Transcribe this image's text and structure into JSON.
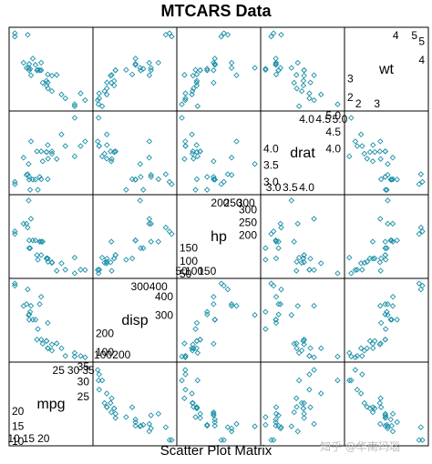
{
  "chart_data": {
    "type": "scatter",
    "title": "MTCARS Data",
    "xlabel": "Scatter Plot Matrix",
    "variables": [
      "mpg",
      "disp",
      "hp",
      "drat",
      "wt"
    ],
    "diagonal": [
      {
        "name": "mpg",
        "range": [
          10,
          35
        ],
        "ticks": [
          10,
          15,
          20,
          25,
          30,
          35
        ]
      },
      {
        "name": "disp",
        "range": [
          70,
          475
        ],
        "ticks": [
          100,
          200,
          300,
          400
        ]
      },
      {
        "name": "hp",
        "range": [
          50,
          340
        ],
        "ticks": [
          50,
          100,
          150,
          200,
          250,
          300
        ]
      },
      {
        "name": "drat",
        "range": [
          2.75,
          5.0
        ],
        "ticks": [
          3.0,
          3.5,
          4.0,
          4.5,
          5.0
        ]
      },
      {
        "name": "wt",
        "range": [
          1.5,
          5.5
        ],
        "ticks": [
          2,
          3,
          4,
          5
        ]
      }
    ],
    "tick_labels": {
      "mpg": {
        "lower": [
          "10",
          "15",
          "20"
        ],
        "upper": [
          "25",
          "30",
          "35"
        ]
      },
      "disp": {
        "lower": [
          "100",
          "200"
        ],
        "upper": [
          "300",
          "400"
        ]
      },
      "hp": {
        "lower": [
          "50",
          "100",
          "150"
        ],
        "upper": [
          "200",
          "250",
          "300"
        ]
      },
      "drat": {
        "lower": [
          "3.0",
          "3.5",
          "4.0"
        ],
        "upper": [
          "4.0",
          "4.5",
          "5.0"
        ]
      },
      "wt": {
        "lower": [
          "2",
          "3"
        ],
        "upper": [
          "4",
          "5"
        ]
      }
    },
    "points": [
      {
        "mpg": 21.0,
        "disp": 160.0,
        "hp": 110,
        "drat": 3.9,
        "wt": 2.62
      },
      {
        "mpg": 21.0,
        "disp": 160.0,
        "hp": 110,
        "drat": 3.9,
        "wt": 2.875
      },
      {
        "mpg": 22.8,
        "disp": 108.0,
        "hp": 93,
        "drat": 3.85,
        "wt": 2.32
      },
      {
        "mpg": 21.4,
        "disp": 258.0,
        "hp": 110,
        "drat": 3.08,
        "wt": 3.215
      },
      {
        "mpg": 18.7,
        "disp": 360.0,
        "hp": 175,
        "drat": 3.15,
        "wt": 3.44
      },
      {
        "mpg": 18.1,
        "disp": 225.0,
        "hp": 105,
        "drat": 2.76,
        "wt": 3.46
      },
      {
        "mpg": 14.3,
        "disp": 360.0,
        "hp": 245,
        "drat": 3.21,
        "wt": 3.57
      },
      {
        "mpg": 24.4,
        "disp": 146.7,
        "hp": 62,
        "drat": 3.69,
        "wt": 3.19
      },
      {
        "mpg": 22.8,
        "disp": 140.8,
        "hp": 95,
        "drat": 3.92,
        "wt": 3.15
      },
      {
        "mpg": 19.2,
        "disp": 167.6,
        "hp": 123,
        "drat": 3.92,
        "wt": 3.44
      },
      {
        "mpg": 17.8,
        "disp": 167.6,
        "hp": 123,
        "drat": 3.92,
        "wt": 3.44
      },
      {
        "mpg": 16.4,
        "disp": 275.8,
        "hp": 180,
        "drat": 3.07,
        "wt": 4.07
      },
      {
        "mpg": 17.3,
        "disp": 275.8,
        "hp": 180,
        "drat": 3.07,
        "wt": 3.73
      },
      {
        "mpg": 15.2,
        "disp": 275.8,
        "hp": 180,
        "drat": 3.07,
        "wt": 3.78
      },
      {
        "mpg": 10.4,
        "disp": 472.0,
        "hp": 205,
        "drat": 2.93,
        "wt": 5.25
      },
      {
        "mpg": 10.4,
        "disp": 460.0,
        "hp": 215,
        "drat": 3.0,
        "wt": 5.424
      },
      {
        "mpg": 14.7,
        "disp": 440.0,
        "hp": 230,
        "drat": 3.23,
        "wt": 5.345
      },
      {
        "mpg": 32.4,
        "disp": 78.7,
        "hp": 66,
        "drat": 4.08,
        "wt": 2.2
      },
      {
        "mpg": 30.4,
        "disp": 75.7,
        "hp": 52,
        "drat": 4.93,
        "wt": 1.615
      },
      {
        "mpg": 33.9,
        "disp": 71.1,
        "hp": 65,
        "drat": 4.22,
        "wt": 1.835
      },
      {
        "mpg": 21.5,
        "disp": 120.1,
        "hp": 97,
        "drat": 3.7,
        "wt": 2.465
      },
      {
        "mpg": 15.5,
        "disp": 318.0,
        "hp": 150,
        "drat": 2.76,
        "wt": 3.52
      },
      {
        "mpg": 15.2,
        "disp": 304.0,
        "hp": 150,
        "drat": 3.15,
        "wt": 3.435
      },
      {
        "mpg": 13.3,
        "disp": 350.0,
        "hp": 245,
        "drat": 3.73,
        "wt": 3.84
      },
      {
        "mpg": 19.2,
        "disp": 400.0,
        "hp": 175,
        "drat": 3.08,
        "wt": 3.845
      },
      {
        "mpg": 27.3,
        "disp": 79.0,
        "hp": 66,
        "drat": 4.08,
        "wt": 1.935
      },
      {
        "mpg": 26.0,
        "disp": 120.3,
        "hp": 91,
        "drat": 4.43,
        "wt": 2.14
      },
      {
        "mpg": 30.4,
        "disp": 95.1,
        "hp": 113,
        "drat": 3.77,
        "wt": 1.513
      },
      {
        "mpg": 15.8,
        "disp": 351.0,
        "hp": 264,
        "drat": 4.22,
        "wt": 3.17
      },
      {
        "mpg": 19.7,
        "disp": 145.0,
        "hp": 175,
        "drat": 3.62,
        "wt": 2.77
      },
      {
        "mpg": 15.0,
        "disp": 301.0,
        "hp": 335,
        "drat": 3.54,
        "wt": 3.57
      },
      {
        "mpg": 21.4,
        "disp": 121.0,
        "hp": 109,
        "drat": 4.11,
        "wt": 2.78
      }
    ],
    "grid": false,
    "point_color": "#1a8fa8",
    "point_shape": "diamond"
  },
  "watermark": "知乎 @华南玛瑙"
}
